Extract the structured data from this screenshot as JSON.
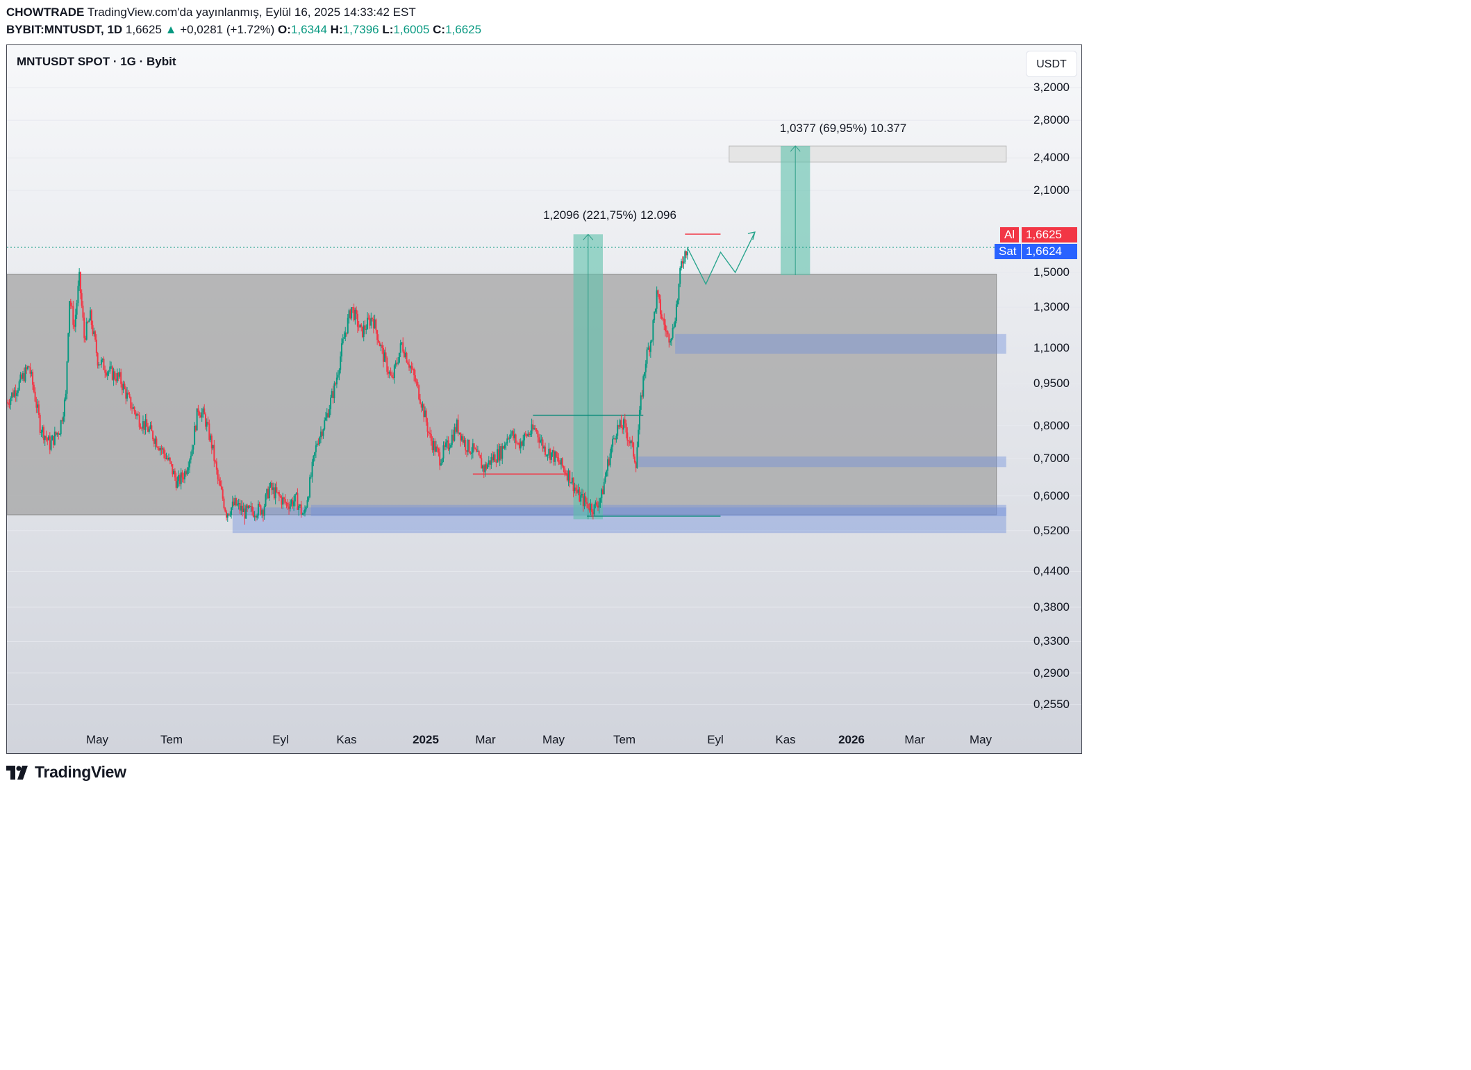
{
  "header": {
    "author": "CHOWTRADE",
    "published": "TradingView.com'da yayınlanmış, Eylül 16, 2025 14:33:42 EST",
    "symbol": "BYBIT:MNTUSDT, 1D",
    "last": "1,6625",
    "change_arrow": "▲",
    "change": "+0,0281 (+1.72%)",
    "o_label": "O:",
    "o": "1,6344",
    "h_label": "H:",
    "h": "1,7396",
    "l_label": "L:",
    "l": "1,6005",
    "c_label": "C:",
    "c": "1,6625"
  },
  "chart": {
    "title": "MNTUSDT SPOT · 1G · Bybit",
    "currency": "USDT",
    "ask_label": "Al",
    "ask_price": "1,6625",
    "bid_label": "Sat",
    "bid_price": "1,6624",
    "measure_1": "1,2096 (221,75%) 12.096",
    "measure_2": "1,0377 (69,95%) 10.377"
  },
  "colors": {
    "up": "#089981",
    "down": "#f23645",
    "ask_tag": "#f23645",
    "bid_tag": "#2962ff",
    "range_box": "#a6a6a6",
    "zone": "#6f8fdb",
    "target": "#5fc2ac"
  },
  "footer": {
    "logo_text": "TradingView",
    "logo_icon": "tradingview-logo-icon"
  },
  "chart_data": {
    "type": "candlestick",
    "title": "MNTUSDT SPOT · 1G · Bybit",
    "scale": "log",
    "y_ticks": [
      "3,2000",
      "2,8000",
      "2,4000",
      "2,1000",
      "1,5000",
      "1,3000",
      "1,1000",
      "0,9500",
      "0,8000",
      "0,7000",
      "0,6000",
      "0,5200",
      "0,4400",
      "0,3800",
      "0,3300",
      "0,2900",
      "0,2550"
    ],
    "y_tick_values": [
      3.2,
      2.8,
      2.4,
      2.1,
      1.5,
      1.3,
      1.1,
      0.95,
      0.8,
      0.7,
      0.6,
      0.52,
      0.44,
      0.38,
      0.33,
      0.29,
      0.255
    ],
    "x_ticks": [
      {
        "label": "May",
        "bold": false
      },
      {
        "label": "Tem",
        "bold": false
      },
      {
        "label": "Eyl",
        "bold": false
      },
      {
        "label": "Kas",
        "bold": false
      },
      {
        "label": "2025",
        "bold": true
      },
      {
        "label": "Mar",
        "bold": false
      },
      {
        "label": "May",
        "bold": false
      },
      {
        "label": "Tem",
        "bold": false
      },
      {
        "label": "Eyl",
        "bold": false
      },
      {
        "label": "Kas",
        "bold": false
      },
      {
        "label": "2026",
        "bold": true
      },
      {
        "label": "Mar",
        "bold": false
      },
      {
        "label": "May",
        "bold": false
      }
    ],
    "x_range": [
      "2024-03-10",
      "2026-06-15"
    ],
    "y_range": [
      0.23,
      3.6
    ],
    "close_path": [
      [
        "2024-03-10",
        0.88
      ],
      [
        "2024-03-20",
        0.95
      ],
      [
        "2024-03-28",
        1.02
      ],
      [
        "2024-04-06",
        0.8
      ],
      [
        "2024-04-14",
        0.74
      ],
      [
        "2024-04-22",
        0.79
      ],
      [
        "2024-04-27",
        0.9
      ],
      [
        "2024-04-30",
        1.35
      ],
      [
        "2024-05-04",
        1.2
      ],
      [
        "2024-05-08",
        1.46
      ],
      [
        "2024-05-12",
        1.15
      ],
      [
        "2024-05-17",
        1.25
      ],
      [
        "2024-05-23",
        1.05
      ],
      [
        "2024-06-01",
        1.0
      ],
      [
        "2024-06-10",
        0.97
      ],
      [
        "2024-06-18",
        0.88
      ],
      [
        "2024-06-26",
        0.82
      ],
      [
        "2024-07-05",
        0.78
      ],
      [
        "2024-07-12",
        0.74
      ],
      [
        "2024-07-20",
        0.69
      ],
      [
        "2024-07-27",
        0.63
      ],
      [
        "2024-08-02",
        0.66
      ],
      [
        "2024-08-08",
        0.73
      ],
      [
        "2024-08-13",
        0.86
      ],
      [
        "2024-08-18",
        0.83
      ],
      [
        "2024-08-24",
        0.74
      ],
      [
        "2024-08-29",
        0.64
      ],
      [
        "2024-09-05",
        0.56
      ],
      [
        "2024-09-12",
        0.58
      ],
      [
        "2024-09-20",
        0.56
      ],
      [
        "2024-09-28",
        0.565
      ],
      [
        "2024-10-05",
        0.57
      ],
      [
        "2024-10-10",
        0.62
      ],
      [
        "2024-10-17",
        0.6
      ],
      [
        "2024-10-24",
        0.58
      ],
      [
        "2024-11-01",
        0.59
      ],
      [
        "2024-11-07",
        0.55
      ],
      [
        "2024-11-12",
        0.63
      ],
      [
        "2024-11-18",
        0.75
      ],
      [
        "2024-11-25",
        0.82
      ],
      [
        "2024-12-03",
        0.95
      ],
      [
        "2024-12-10",
        1.15
      ],
      [
        "2024-12-16",
        1.3
      ],
      [
        "2024-12-24",
        1.17
      ],
      [
        "2025-01-02",
        1.25
      ],
      [
        "2025-01-10",
        1.08
      ],
      [
        "2025-01-18",
        0.96
      ],
      [
        "2025-01-26",
        1.12
      ],
      [
        "2025-02-02",
        1.02
      ],
      [
        "2025-02-10",
        0.9
      ],
      [
        "2025-02-18",
        0.76
      ],
      [
        "2025-02-26",
        0.7
      ],
      [
        "2025-03-05",
        0.74
      ],
      [
        "2025-03-12",
        0.8
      ],
      [
        "2025-03-19",
        0.74
      ],
      [
        "2025-03-26",
        0.72
      ],
      [
        "2025-04-03",
        0.67
      ],
      [
        "2025-04-10",
        0.7
      ],
      [
        "2025-04-17",
        0.72
      ],
      [
        "2025-04-24",
        0.78
      ],
      [
        "2025-05-01",
        0.74
      ],
      [
        "2025-05-08",
        0.77
      ],
      [
        "2025-05-15",
        0.79
      ],
      [
        "2025-05-22",
        0.73
      ],
      [
        "2025-05-29",
        0.71
      ],
      [
        "2025-06-05",
        0.68
      ],
      [
        "2025-06-12",
        0.65
      ],
      [
        "2025-06-19",
        0.6
      ],
      [
        "2025-06-26",
        0.58
      ],
      [
        "2025-07-02",
        0.57
      ],
      [
        "2025-07-08",
        0.6
      ],
      [
        "2025-07-14",
        0.7
      ],
      [
        "2025-07-20",
        0.79
      ],
      [
        "2025-07-26",
        0.8
      ],
      [
        "2025-08-01",
        0.74
      ],
      [
        "2025-08-05",
        0.69
      ],
      [
        "2025-08-09",
        0.88
      ],
      [
        "2025-08-13",
        1.05
      ],
      [
        "2025-08-18",
        1.16
      ],
      [
        "2025-08-22",
        1.37
      ],
      [
        "2025-08-26",
        1.25
      ],
      [
        "2025-08-31",
        1.15
      ],
      [
        "2025-09-04",
        1.18
      ],
      [
        "2025-09-08",
        1.35
      ],
      [
        "2025-09-11",
        1.55
      ],
      [
        "2025-09-14",
        1.63
      ],
      [
        "2025-09-16",
        1.6625
      ]
    ],
    "range_box": {
      "from": "2024-03-10",
      "to": "2026-05-26",
      "top": 1.49,
      "bottom": 0.555
    },
    "demand_zones": [
      {
        "from": "2025-09-06",
        "to": "2026-06-03",
        "top": 1.165,
        "bottom": 1.075
      },
      {
        "from": "2025-08-07",
        "to": "2026-06-03",
        "top": 0.705,
        "bottom": 0.675
      },
      {
        "from": "2024-09-10",
        "to": "2026-06-03",
        "top": 0.572,
        "bottom": 0.515
      },
      {
        "from": "2024-11-13",
        "to": "2026-06-03",
        "top": 0.578,
        "bottom": 0.552
      }
    ],
    "target_zone": {
      "from": "2025-10-20",
      "to": "2026-06-03",
      "top": 2.52,
      "bottom": 2.36
    },
    "measurements": [
      {
        "label": "1,2096 (221,75%) 12.096",
        "from": "2025-06-15",
        "to": "2025-07-09",
        "base": 0.545,
        "top": 1.7541
      },
      {
        "label": "1,0377 (69,95%) 10.377",
        "from": "2025-12-01",
        "to": "2025-12-25",
        "base": 1.4835,
        "top": 2.5212
      }
    ],
    "forecast_path": [
      [
        "2025-09-16",
        1.66
      ],
      [
        "2025-10-01",
        1.43
      ],
      [
        "2025-10-13",
        1.63
      ],
      [
        "2025-10-25",
        1.5
      ],
      [
        "2025-11-10",
        1.77
      ]
    ],
    "resistance_segments": [
      {
        "from": "2025-09-14",
        "to": "2025-10-13",
        "value": 1.755
      },
      {
        "from": "2025-05-13",
        "to": "2025-08-11",
        "value": 0.835
      },
      {
        "from": "2025-03-25",
        "to": "2025-06-11",
        "value": 0.656
      },
      {
        "from": "2025-06-26",
        "to": "2025-10-13",
        "value": 0.552
      }
    ],
    "last_price": 1.6625
  }
}
